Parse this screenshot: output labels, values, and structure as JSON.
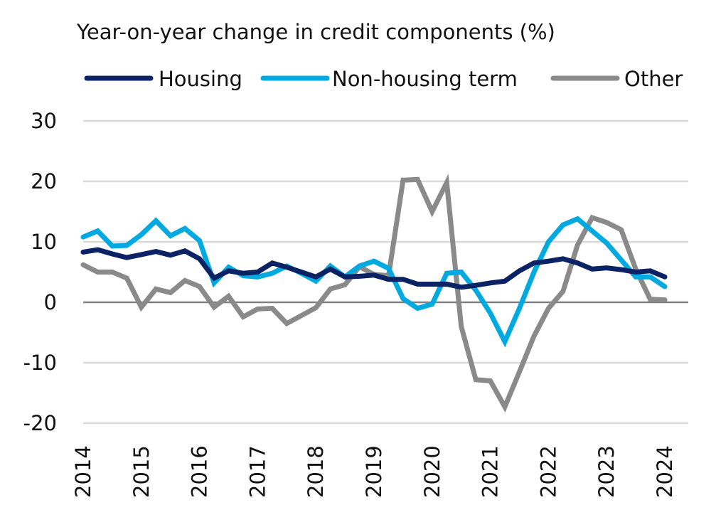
{
  "chart_data": {
    "type": "line",
    "title": "Year-on-year change in credit components (%)",
    "xlabel": "",
    "ylabel": "",
    "ylim": [
      -20,
      30
    ],
    "yticks": [
      30,
      20,
      10,
      0,
      -10,
      -20
    ],
    "xlim": [
      2014,
      2024
    ],
    "xticks": [
      "2014",
      "2015",
      "2016",
      "2017",
      "2018",
      "2019",
      "2020",
      "2021",
      "2022",
      "2023",
      "2024"
    ],
    "grid": true,
    "legend_position": "top",
    "x_start": 2014,
    "x_step": 0.25,
    "series": [
      {
        "name": "Housing",
        "color": "#0b2265",
        "values": [
          8.3,
          8.7,
          8.0,
          7.4,
          7.9,
          8.4,
          7.8,
          8.5,
          7.2,
          4.0,
          5.2,
          4.8,
          5.0,
          6.5,
          5.8,
          5.0,
          4.2,
          5.5,
          4.2,
          4.3,
          4.5,
          3.8,
          3.8,
          3.0,
          3.0,
          3.0,
          2.5,
          2.8,
          3.2,
          3.5,
          5.2,
          6.5,
          6.8,
          7.2,
          6.5,
          5.5,
          5.7,
          5.4,
          5.0,
          5.2,
          4.2
        ]
      },
      {
        "name": "Non-housing term",
        "color": "#00a9e0",
        "values": [
          10.8,
          11.8,
          9.3,
          9.4,
          11.2,
          13.5,
          11.0,
          12.2,
          10.2,
          3.2,
          5.8,
          4.4,
          4.2,
          4.8,
          6.0,
          4.8,
          3.5,
          6.0,
          4.2,
          6.0,
          6.8,
          5.6,
          0.6,
          -1.0,
          -0.3,
          4.8,
          5.0,
          2.0,
          -1.8,
          -6.5,
          -1.0,
          5.0,
          10.0,
          12.8,
          13.8,
          11.8,
          9.8,
          7.0,
          4.2,
          4.2,
          2.6
        ]
      },
      {
        "name": "Other",
        "color": "#8a8a8a",
        "values": [
          6.2,
          5.0,
          5.0,
          4.0,
          -0.8,
          2.2,
          1.6,
          3.6,
          2.6,
          -0.8,
          1.0,
          -2.4,
          -1.1,
          -1.0,
          -3.5,
          -2.2,
          -0.9,
          2.2,
          2.9,
          5.9,
          4.6,
          4.4,
          20.2,
          20.3,
          15.0,
          19.8,
          -4.0,
          -12.8,
          -13.0,
          -17.3,
          -11.5,
          -5.6,
          -1.0,
          1.8,
          9.5,
          14.0,
          13.2,
          12.0,
          5.5,
          0.5,
          0.4
        ]
      }
    ]
  }
}
